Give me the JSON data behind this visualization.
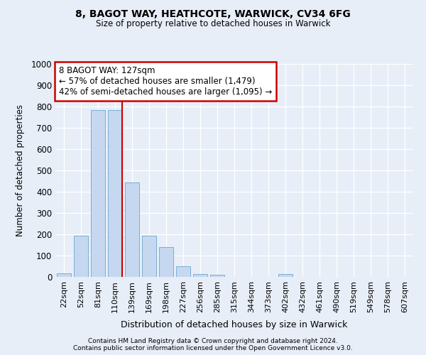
{
  "title1": "8, BAGOT WAY, HEATHCOTE, WARWICK, CV34 6FG",
  "title2": "Size of property relative to detached houses in Warwick",
  "xlabel": "Distribution of detached houses by size in Warwick",
  "ylabel": "Number of detached properties",
  "categories": [
    "22sqm",
    "52sqm",
    "81sqm",
    "110sqm",
    "139sqm",
    "169sqm",
    "198sqm",
    "227sqm",
    "256sqm",
    "285sqm",
    "315sqm",
    "344sqm",
    "373sqm",
    "402sqm",
    "432sqm",
    "461sqm",
    "490sqm",
    "519sqm",
    "549sqm",
    "578sqm",
    "607sqm"
  ],
  "values": [
    18,
    195,
    785,
    785,
    445,
    195,
    140,
    50,
    15,
    10,
    0,
    0,
    0,
    12,
    0,
    0,
    0,
    0,
    0,
    0,
    0
  ],
  "bar_color": "#c5d8f0",
  "bar_edge_color": "#7aaed4",
  "annotation_line1": "8 BAGOT WAY: 127sqm",
  "annotation_line2": "← 57% of detached houses are smaller (1,479)",
  "annotation_line3": "42% of semi-detached houses are larger (1,095) →",
  "annotation_box_color": "#ffffff",
  "annotation_box_edge_color": "#cc0000",
  "property_bar_index": 3,
  "ylim": [
    0,
    1000
  ],
  "yticks": [
    0,
    100,
    200,
    300,
    400,
    500,
    600,
    700,
    800,
    900,
    1000
  ],
  "background_color": "#e8eef8",
  "plot_bg_color": "#e8eef8",
  "grid_color": "#ffffff",
  "footer1": "Contains HM Land Registry data © Crown copyright and database right 2024.",
  "footer2": "Contains public sector information licensed under the Open Government Licence v3.0."
}
